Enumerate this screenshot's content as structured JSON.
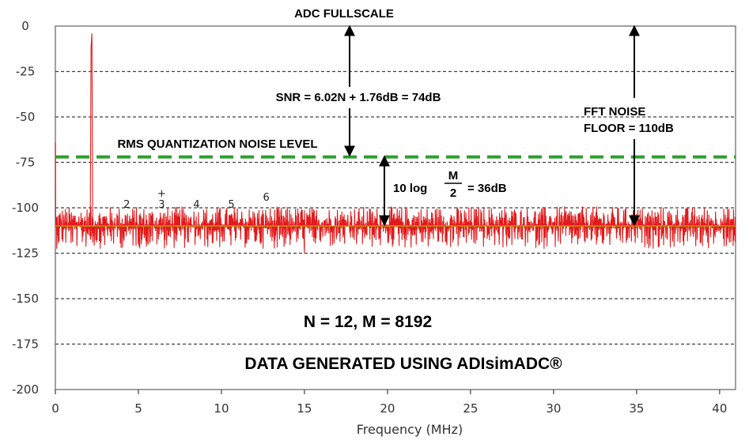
{
  "chart_data": {
    "type": "line",
    "title": "",
    "xlabel": "Frequency (MHz)",
    "ylabel": "",
    "xlim": [
      0,
      40.96
    ],
    "ylim": [
      -200,
      0
    ],
    "x_ticks": [
      "0",
      "5",
      "10",
      "15",
      "20",
      "25",
      "30",
      "35",
      "40"
    ],
    "y_ticks": [
      "0",
      "-25",
      "-50",
      "-75",
      "-100",
      "-125",
      "-150",
      "-175",
      "-200"
    ],
    "grid": "horizontal dashed",
    "series": [
      {
        "type": "line",
        "color": "#e31a1c",
        "noise_floor_db": -110,
        "noise_floor_line_color": "#b5b500",
        "points": [
          {
            "x": 0.0,
            "y": -64
          },
          {
            "x": 0.02,
            "y": -110
          },
          {
            "x": 2.1,
            "y": -110
          },
          {
            "x": 2.15,
            "y": -12
          },
          {
            "x": 2.2,
            "y": -4
          },
          {
            "x": 2.25,
            "y": -110
          },
          {
            "x": 15.0,
            "y": -125
          }
        ]
      }
    ],
    "rms_quantization_noise_level_db": -72,
    "rms_line_color": "#2ca02c",
    "harmonics": [
      {
        "label": "2",
        "x": 4.3,
        "y": -100
      },
      {
        "label": "3",
        "x": 6.4,
        "y": -100
      },
      {
        "label": "4",
        "x": 8.5,
        "y": -100
      },
      {
        "label": "5",
        "x": 10.6,
        "y": -100
      },
      {
        "label": "6",
        "x": 12.7,
        "y": -96
      }
    ],
    "marker": {
      "label": "+",
      "x": 6.4,
      "y": -94
    }
  },
  "annotations": {
    "fullscale": "ADC FULLSCALE",
    "snr": "SNR = 6.02N + 1.76dB = 74dB",
    "rms": "RMS QUANTIZATION NOISE LEVEL",
    "fft_line1": "FFT NOISE",
    "fft_line2": "FLOOR = 110dB",
    "log_prefix": "10 log",
    "frac_num": "M",
    "frac_den": "2",
    "log_suffix": "= 36dB",
    "params": "N = 12, M = 8192",
    "generated": "DATA GENERATED USING ADIsimADC®"
  }
}
